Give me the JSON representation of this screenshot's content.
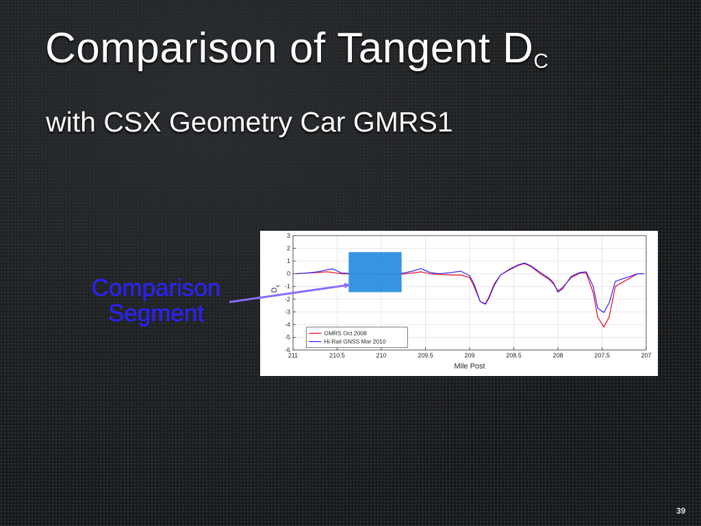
{
  "slide": {
    "title_main": "Comparison of Tangent D",
    "title_sub": "C",
    "subtitle": "with CSX Geometry Car GMRS1",
    "callout_line1": "Comparison",
    "callout_line2": "Segment",
    "page_number": "39"
  },
  "colors": {
    "callout": "#2a1fff",
    "highlight_box": "#2b8fe0",
    "series_gmrs": "#e8001c",
    "series_hirail": "#2a1fff"
  },
  "chart_data": {
    "type": "line",
    "xlabel": "Mile Post",
    "ylabel": "D",
    "ylabel_sub": "c",
    "xlim": [
      211,
      207
    ],
    "ylim": [
      -6,
      3
    ],
    "x_reversed": true,
    "xticks": [
      211,
      210.5,
      210,
      209.5,
      209,
      208.5,
      208,
      207.5,
      207
    ],
    "xtick_labels": [
      "211",
      "210.5",
      "210",
      "209.5",
      "209",
      "208.5",
      "208",
      "207.5",
      "207"
    ],
    "yticks": [
      3,
      2,
      1,
      0,
      -1,
      -2,
      -3,
      -4,
      -5,
      -6
    ],
    "ytick_labels": [
      "3",
      "2",
      "1",
      "0",
      "-1",
      "-2",
      "-3",
      "-4",
      "-5",
      "-6"
    ],
    "grid": true,
    "legend_position": "bottom-left",
    "highlight_segment": [
      210.37,
      209.77
    ],
    "series": [
      {
        "name": "GMRS Oct 2008",
        "color": "#e8001c",
        "x": [
          210.97,
          210.85,
          210.72,
          210.62,
          210.55,
          210.45,
          210.3,
          210.1,
          209.9,
          209.75,
          209.65,
          209.55,
          209.45,
          209.35,
          209.2,
          209.1,
          209.0,
          208.95,
          208.88,
          208.82,
          208.78,
          208.72,
          208.65,
          208.55,
          208.45,
          208.38,
          208.3,
          208.2,
          208.1,
          208.05,
          208.0,
          207.95,
          207.85,
          207.75,
          207.68,
          207.6,
          207.55,
          207.48,
          207.42,
          207.35,
          207.1,
          207.02
        ],
        "y": [
          0.0,
          0.05,
          0.1,
          0.15,
          0.1,
          0.0,
          -0.02,
          0.0,
          -0.05,
          -0.02,
          0.05,
          0.15,
          0.0,
          -0.05,
          -0.1,
          -0.1,
          -0.3,
          -1.0,
          -2.2,
          -2.35,
          -1.8,
          -0.8,
          -0.1,
          0.3,
          0.65,
          0.8,
          0.55,
          0.0,
          -0.45,
          -0.8,
          -1.35,
          -1.1,
          -0.3,
          0.05,
          0.05,
          -1.5,
          -3.4,
          -4.2,
          -3.4,
          -1.0,
          0.0,
          0.0
        ]
      },
      {
        "name": "Hi-Rail GNSS Mar 2010",
        "color": "#2a1fff",
        "x": [
          210.97,
          210.85,
          210.72,
          210.62,
          210.55,
          210.45,
          210.3,
          210.1,
          209.9,
          209.75,
          209.65,
          209.55,
          209.45,
          209.35,
          209.2,
          209.1,
          209.0,
          208.95,
          208.88,
          208.82,
          208.78,
          208.72,
          208.65,
          208.55,
          208.45,
          208.38,
          208.3,
          208.2,
          208.1,
          208.05,
          208.0,
          207.95,
          207.85,
          207.75,
          207.68,
          207.6,
          207.55,
          207.48,
          207.42,
          207.35,
          207.1,
          207.02
        ],
        "y": [
          0.0,
          0.05,
          0.15,
          0.3,
          0.38,
          0.05,
          0.0,
          0.0,
          0.0,
          0.05,
          0.2,
          0.4,
          0.1,
          0.0,
          0.1,
          0.2,
          -0.15,
          -0.8,
          -2.2,
          -2.4,
          -1.9,
          -0.9,
          -0.1,
          0.35,
          0.7,
          0.85,
          0.6,
          0.1,
          -0.35,
          -0.7,
          -1.45,
          -1.2,
          -0.2,
          0.1,
          0.15,
          -1.0,
          -2.7,
          -3.05,
          -2.3,
          -0.6,
          0.0,
          0.0
        ]
      }
    ]
  }
}
